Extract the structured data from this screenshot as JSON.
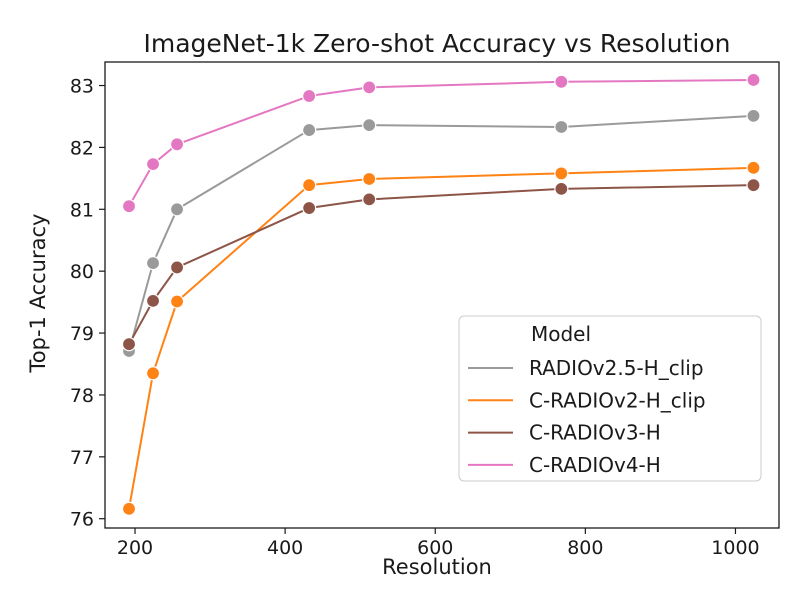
{
  "chart_data": {
    "type": "line",
    "title": "ImageNet-1k Zero-shot Accuracy vs Resolution",
    "xlabel": "Resolution",
    "ylabel": "Top-1 Accuracy",
    "xlim": [
      160,
      1058
    ],
    "ylim": [
      75.85,
      83.38
    ],
    "x_ticks": [
      200,
      400,
      600,
      800,
      1000
    ],
    "y_ticks": [
      76,
      77,
      78,
      79,
      80,
      81,
      82,
      83
    ],
    "grid": false,
    "legend": {
      "title": "Model",
      "placement": "lower-right"
    },
    "series": [
      {
        "name": "RADIOv2.5-H_clip",
        "color": "#9a9a9a",
        "x": [
          192,
          224,
          256,
          432,
          512,
          768,
          1024
        ],
        "y": [
          78.71,
          80.13,
          81.0,
          82.28,
          82.36,
          82.33,
          82.51
        ]
      },
      {
        "name": "C-RADIOv2-H_clip",
        "color": "#ff8214",
        "x": [
          192,
          224,
          256,
          432,
          512,
          768,
          1024
        ],
        "y": [
          76.16,
          78.35,
          79.51,
          81.39,
          81.49,
          81.58,
          81.67
        ]
      },
      {
        "name": "C-RADIOv3-H",
        "color": "#8c5548",
        "x": [
          192,
          224,
          256,
          432,
          512,
          768,
          1024
        ],
        "y": [
          78.82,
          79.52,
          80.06,
          81.02,
          81.16,
          81.33,
          81.39
        ]
      },
      {
        "name": "C-RADIOv4-H",
        "color": "#e477c2",
        "x": [
          192,
          224,
          256,
          432,
          512,
          768,
          1024
        ],
        "y": [
          81.05,
          81.73,
          82.05,
          82.83,
          82.97,
          83.06,
          83.09
        ]
      }
    ]
  }
}
